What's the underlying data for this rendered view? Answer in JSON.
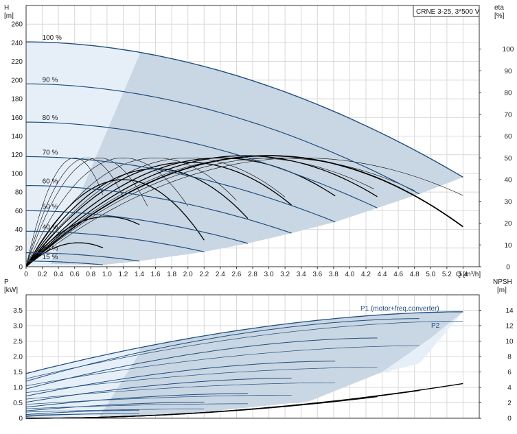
{
  "chart_data": [
    {
      "type": "line",
      "title": "CRNE 3-25, 3*500 V",
      "xlabel": "Q [m³/h]",
      "ylabel_left": {
        "name": "H",
        "unit": "[m]"
      },
      "ylabel_right": {
        "name": "eta",
        "unit": "[%]"
      },
      "x_ticks": [
        "0",
        "0.2",
        "0.4",
        "0.6",
        "0.8",
        "1.0",
        "1.2",
        "1.4",
        "1.6",
        "1.8",
        "2.0",
        "2.2",
        "2.4",
        "2.6",
        "2.8",
        "3.0",
        "3.2",
        "3.4",
        "3.6",
        "3.8",
        "4.0",
        "4.2",
        "4.4",
        "4.6",
        "4.8",
        "5.0",
        "5.2",
        "5.4"
      ],
      "xlim": [
        0,
        5.6
      ],
      "ylim_left": [
        0,
        280
      ],
      "ylim_right": [
        0,
        120
      ],
      "y_ticks_left": [
        "0",
        "20",
        "40",
        "60",
        "80",
        "100",
        "120",
        "140",
        "160",
        "180",
        "200",
        "220",
        "240",
        "260"
      ],
      "y_ticks_right": [
        "0",
        "10",
        "20",
        "30",
        "40",
        "50",
        "60",
        "70",
        "80",
        "90",
        "100"
      ],
      "grid": true,
      "colors": {
        "head": "#1f4e7f",
        "eta": "#000000",
        "envelope": "#c9d6e3",
        "envelope_light": "#e6eff8"
      },
      "series": [
        {
          "name": "100 %",
          "h0": 241,
          "qmax": 5.4,
          "hmax": 96
        },
        {
          "name": "90 %",
          "h0": 196,
          "qmax": 4.86,
          "hmax": 78
        },
        {
          "name": "80 %",
          "h0": 155,
          "qmax": 4.34,
          "hmax": 63
        },
        {
          "name": "70 %",
          "h0": 118,
          "qmax": 3.82,
          "hmax": 48
        },
        {
          "name": "60 %",
          "h0": 87,
          "qmax": 3.28,
          "hmax": 36
        },
        {
          "name": "50 %",
          "h0": 60,
          "qmax": 2.74,
          "hmax": 25
        },
        {
          "name": "40 %",
          "h0": 38,
          "qmax": 2.2,
          "hmax": 16
        },
        {
          "name": "25 %",
          "h0": 15,
          "qmax": 1.4,
          "hmax": 6
        },
        {
          "name": "15 %",
          "h0": 6,
          "qmax": 0.95,
          "hmax": 2
        }
      ],
      "efficiency": {
        "main": {
          "qmax": 5.4,
          "peak_q": 3.0,
          "peak": 51
        },
        "short_curves": [
          {
            "qmax": 0.95,
            "peak_q": 0.65,
            "peak": 11
          },
          {
            "qmax": 1.4,
            "peak_q": 1.0,
            "peak": 23
          },
          {
            "qmax": 2.2,
            "peak_q": 1.2,
            "peak": 40
          },
          {
            "qmax": 2.74,
            "peak_q": 1.6,
            "peak": 45
          },
          {
            "qmax": 3.28,
            "peak_q": 2.0,
            "peak": 48
          },
          {
            "qmax": 3.82,
            "peak_q": 2.4,
            "peak": 50
          },
          {
            "qmax": 4.34,
            "peak_q": 2.7,
            "peak": 51
          },
          {
            "qmax": 4.86,
            "peak_q": 3.0,
            "peak": 51
          }
        ],
        "thin_curves": [
          {
            "qmax": 0.95,
            "peak_q": 0.6,
            "peak": 50
          },
          {
            "qmax": 1.2,
            "peak_q": 0.75,
            "peak": 50
          },
          {
            "qmax": 1.5,
            "peak_q": 0.9,
            "peak": 50
          },
          {
            "qmax": 2.0,
            "peak_q": 1.2,
            "peak": 50
          },
          {
            "qmax": 2.6,
            "peak_q": 1.6,
            "peak": 50
          },
          {
            "qmax": 3.2,
            "peak_q": 2.0,
            "peak": 50
          },
          {
            "qmax": 3.8,
            "peak_q": 2.4,
            "peak": 50
          },
          {
            "qmax": 4.3,
            "peak_q": 2.8,
            "peak": 50
          },
          {
            "qmax": 4.8,
            "peak_q": 3.1,
            "peak": 50
          },
          {
            "qmax": 5.4,
            "peak_q": 3.4,
            "peak": 50
          }
        ]
      }
    },
    {
      "type": "line",
      "ylabel_left": {
        "name": "P",
        "unit": "[kW]"
      },
      "ylabel_right": {
        "name": "NPSH",
        "unit": "[m]"
      },
      "xlim": [
        0,
        5.6
      ],
      "ylim_left": [
        0,
        4.0
      ],
      "ylim_right": [
        0,
        16
      ],
      "y_ticks_left": [
        "0",
        "0.5",
        "1.0",
        "1.5",
        "2.0",
        "2.5",
        "3.0",
        "3.5"
      ],
      "y_ticks_right": [
        "0",
        "2",
        "4",
        "6",
        "8",
        "10",
        "12",
        "14"
      ],
      "grid": true,
      "series_labels": [
        "P1 (motor+freq.converter)",
        "P2"
      ],
      "p1": [
        {
          "p0": 1.45,
          "qmax": 5.4,
          "pmax": 3.45
        },
        {
          "p0": 1.2,
          "qmax": 4.86,
          "pmax": 3.23
        },
        {
          "p0": 0.95,
          "qmax": 4.34,
          "pmax": 2.6
        },
        {
          "p0": 0.72,
          "qmax": 3.82,
          "pmax": 1.85
        },
        {
          "p0": 0.52,
          "qmax": 3.28,
          "pmax": 1.3
        },
        {
          "p0": 0.36,
          "qmax": 2.74,
          "pmax": 0.8
        },
        {
          "p0": 0.24,
          "qmax": 2.2,
          "pmax": 0.52
        },
        {
          "p0": 0.12,
          "qmax": 1.4,
          "pmax": 0.26
        },
        {
          "p0": 0.06,
          "qmax": 0.95,
          "pmax": 0.14
        }
      ],
      "p2": [
        {
          "p0": 1.28,
          "qmax": 5.4,
          "pmax": 3.15
        },
        {
          "p0": 1.05,
          "qmax": 4.86,
          "pmax": 2.35
        },
        {
          "p0": 0.83,
          "qmax": 4.34,
          "pmax": 1.65
        },
        {
          "p0": 0.62,
          "qmax": 3.82,
          "pmax": 1.15
        },
        {
          "p0": 0.45,
          "qmax": 3.28,
          "pmax": 0.75
        },
        {
          "p0": 0.31,
          "qmax": 2.74,
          "pmax": 0.47
        },
        {
          "p0": 0.2,
          "qmax": 2.2,
          "pmax": 0.3
        },
        {
          "p0": 0.1,
          "qmax": 1.4,
          "pmax": 0.15
        }
      ],
      "npsh": [
        {
          "qmax": 5.4,
          "nmax": 4.5
        },
        {
          "qmax": 4.86,
          "nmax": 3.6
        },
        {
          "qmax": 4.34,
          "nmax": 2.8
        }
      ]
    }
  ]
}
